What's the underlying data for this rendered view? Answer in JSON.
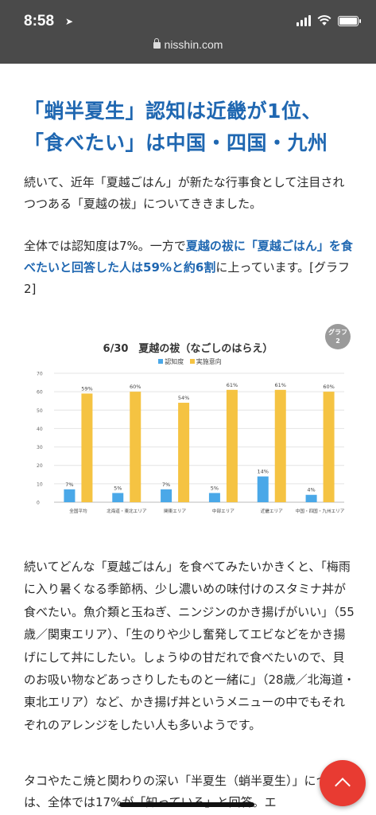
{
  "status_bar": {
    "time": "8:58",
    "location_arrow": "location-arrow-icon",
    "battery_level": 1.0
  },
  "browser": {
    "url": "nisshin.com"
  },
  "article": {
    "heading_line1": "「蛸半夏生」認知は近畿が1位、",
    "heading_line2": "「食べたい」は中国・四国・九州",
    "p1": "続いて、近年「夏越ごはん」が新たな行事食として注目されつつある「夏越の祓」についてききました。",
    "p2_before": "全体では認知度は7%。一方で",
    "p2_highlight": "夏越の祓に「夏越ごはん」を食べたいと回答した人は59%と約6割",
    "p2_after": "に上っています。[グラフ2]",
    "p3": "続いてどんな「夏越ごはん」を食べてみたいかきくと、「梅雨に入り暑くなる季節柄、少し濃いめの味付けのスタミナ丼が食べたい。魚介類と玉ねぎ、ニンジンのかき揚げがいい」（55歳／関東エリア）、「生のりや少し奮発してエビなどをかき揚げにして丼にしたい。しょうゆの甘だれで食べたいので、貝のお吸い物などあっさりしたものと一緒に」（28歳／北海道・東北エリア）など、かき揚げ丼というメニューの中でもそれぞれのアレンジをしたい人も多いようです。",
    "p4": "タコやたこ焼と関わりの深い「半夏生（蛸半夏生）」については、全体では17%が「知っている」と回答。エ"
  },
  "graph_badge": {
    "line1": "グラフ",
    "line2": "2"
  },
  "colors": {
    "accent": "#1f67b1",
    "awareness": "#4aa8e8",
    "intent": "#f5c342",
    "fab": "#e83b32"
  },
  "chart_data": {
    "type": "bar",
    "title": "6/30　夏越の祓（なごしのはらえ）",
    "categories": [
      "全国平均",
      "北海道・東北エリア",
      "関東エリア",
      "中部エリア",
      "近畿エリア",
      "中国・四国・九州エリア"
    ],
    "series": [
      {
        "name": "認知度",
        "values": [
          7,
          5,
          7,
          5,
          14,
          4
        ],
        "color": "#4aa8e8"
      },
      {
        "name": "実施意向",
        "values": [
          59,
          60,
          54,
          61,
          61,
          60
        ],
        "color": "#f5c342"
      }
    ],
    "value_suffix": "%",
    "ylim": [
      0,
      70
    ],
    "yticks": [
      0,
      10,
      20,
      30,
      40,
      50,
      60,
      70
    ],
    "grid": true,
    "legend": "top-center"
  },
  "fab": {
    "icon": "chevron-up-icon"
  }
}
